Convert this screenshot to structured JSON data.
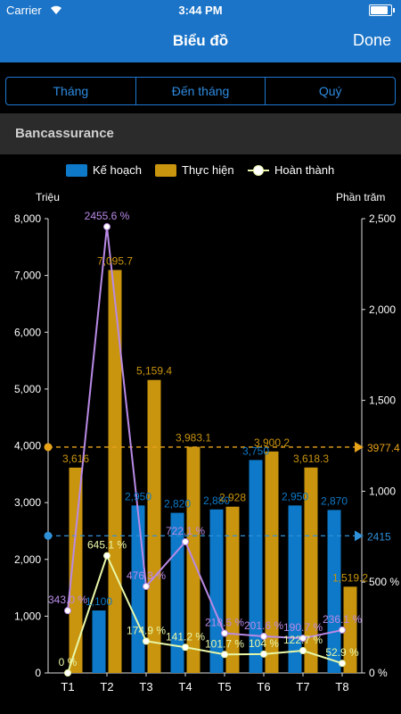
{
  "status": {
    "carrier": "Carrier",
    "time": "3:44 PM",
    "battery_level": 0.95
  },
  "nav": {
    "title": "Biểu đồ",
    "done_label": "Done"
  },
  "tabs": [
    {
      "label": "Tháng"
    },
    {
      "label": "Đến tháng"
    },
    {
      "label": "Quý"
    }
  ],
  "section": {
    "title": "Bancassurance"
  },
  "colors": {
    "ke_hoach": "#0d79c8",
    "thuc_hien": "#c9940e",
    "hoan_thanh_line": "#e8f7a8",
    "purple": "#b98ae6",
    "ref_orange": "#e8a21a",
    "ref_blue": "#2f90d8"
  },
  "chart_data": {
    "type": "bar",
    "categories": [
      "T1",
      "T2",
      "T3",
      "T4",
      "T5",
      "T6",
      "T7",
      "T8"
    ],
    "legend": {
      "ke_hoach": "Kế hoạch",
      "thuc_hien": "Thực hiện",
      "hoan_thanh": "Hoàn thành"
    },
    "left_axis": {
      "title": "Triệu",
      "ylim": [
        0,
        8000
      ],
      "ticks": [
        "0",
        "1,000",
        "2,000",
        "3,000",
        "4,000",
        "5,000",
        "6,000",
        "7,000",
        "8,000"
      ]
    },
    "right_axis": {
      "title": "Phần trăm",
      "ylim": [
        0,
        2500
      ],
      "ticks": [
        "0 %",
        "500 %",
        "1,000",
        "1,500",
        "2,000",
        "2,500"
      ]
    },
    "series": [
      {
        "name": "Kế hoạch",
        "axis": "left",
        "values": [
          0,
          1100,
          2950,
          2820,
          2880,
          3750,
          2950,
          2870
        ],
        "labels": [
          "",
          "1,100",
          "2,950",
          "2,820",
          "2,880",
          "3,750",
          "2,950",
          "2,870"
        ]
      },
      {
        "name": "Thực hiện",
        "axis": "left",
        "values": [
          3616,
          7095.7,
          5159.4,
          3983.1,
          2928,
          3900.2,
          3618.3,
          1519.2
        ],
        "labels": [
          "3,616",
          "7,095.7",
          "5,159.4",
          "3,983.1",
          "2,928",
          "3,900.2",
          "3,618.3",
          "1,519.2"
        ]
      },
      {
        "name": "Hoàn thành",
        "axis": "right",
        "values": [
          0,
          645.1,
          174.9,
          141.2,
          101.7,
          104,
          122.7,
          52.9
        ],
        "labels": [
          "0 %",
          "645.1 %",
          "174.9 %",
          "141.2 %",
          "101.7 %",
          "104 %",
          "122.7 %",
          "52.9 %"
        ]
      },
      {
        "axis": "right",
        "values": [
          343.0,
          2455.6,
          476.3,
          722.1,
          218.5,
          201.6,
          190.7,
          236.1
        ],
        "labels": [
          "343.0 %",
          "2455.6 %",
          "476.3 %",
          "722.1 %",
          "218.5 %",
          "201.6 %",
          "190.7 %",
          "236.1 %"
        ]
      }
    ],
    "reference_lines": [
      {
        "axis": "left",
        "value": 3977.4,
        "label": "3977.4"
      },
      {
        "axis": "left",
        "value": 2415,
        "label": "2415"
      }
    ]
  }
}
